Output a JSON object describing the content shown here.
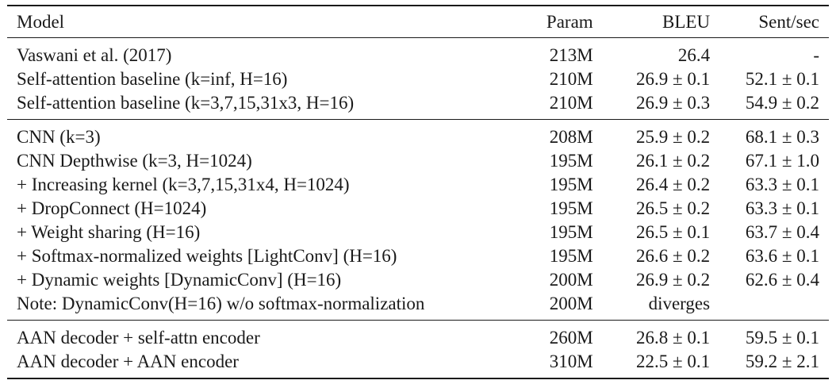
{
  "table": {
    "headers": {
      "model": "Model",
      "param": "Param",
      "bleu": "BLEU",
      "sent": "Sent/sec"
    },
    "groups": [
      {
        "rows": [
          {
            "model": "Vaswani et al. (2017)",
            "param": "213M",
            "bleu": "26.4",
            "sent": "-"
          },
          {
            "model": "Self-attention baseline (k=inf, H=16)",
            "param": "210M",
            "bleu": "26.9 ± 0.1",
            "sent": "52.1 ± 0.1"
          },
          {
            "model": "Self-attention baseline (k=3,7,15,31x3, H=16)",
            "param": "210M",
            "bleu": "26.9 ± 0.3",
            "sent": "54.9 ± 0.2"
          }
        ]
      },
      {
        "rows": [
          {
            "model": "CNN (k=3)",
            "param": "208M",
            "bleu": "25.9 ± 0.2",
            "sent": "68.1 ± 0.3"
          },
          {
            "model": "CNN Depthwise (k=3, H=1024)",
            "param": "195M",
            "bleu": "26.1 ± 0.2",
            "sent": "67.1 ± 1.0"
          },
          {
            "model": "+ Increasing kernel (k=3,7,15,31x4, H=1024)",
            "param": "195M",
            "bleu": "26.4 ± 0.2",
            "sent": "63.3 ± 0.1"
          },
          {
            "model": "+ DropConnect (H=1024)",
            "param": "195M",
            "bleu": "26.5 ± 0.2",
            "sent": "63.3 ± 0.1"
          },
          {
            "model": "+ Weight sharing (H=16)",
            "param": "195M",
            "bleu": "26.5 ± 0.1",
            "sent": "63.7 ± 0.4"
          },
          {
            "model": "+ Softmax-normalized weights [LightConv] (H=16)",
            "param": "195M",
            "bleu": "26.6 ± 0.2",
            "sent": "63.6 ± 0.1"
          },
          {
            "model": "+ Dynamic weights [DynamicConv] (H=16)",
            "param": "200M",
            "bleu": "26.9 ± 0.2",
            "sent": "62.6 ± 0.4"
          },
          {
            "model": "Note: DynamicConv(H=16) w/o softmax-normalization",
            "param": "200M",
            "bleu": "diverges",
            "sent": ""
          }
        ]
      },
      {
        "rows": [
          {
            "model": "AAN decoder + self-attn encoder",
            "param": "260M",
            "bleu": "26.8 ± 0.1",
            "sent": "59.5 ± 0.1"
          },
          {
            "model": "AAN decoder + AAN encoder",
            "param": "310M",
            "bleu": "22.5 ± 0.1",
            "sent": "59.2 ± 2.1"
          }
        ]
      }
    ]
  }
}
